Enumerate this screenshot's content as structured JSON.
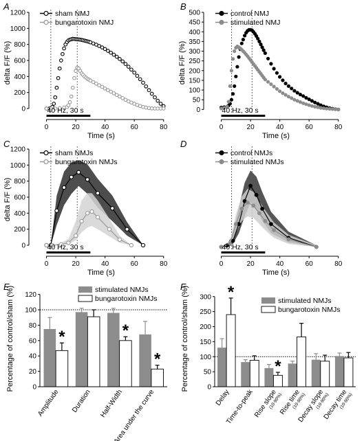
{
  "figure": {
    "panels": [
      "A",
      "B",
      "C",
      "D",
      "E",
      "F"
    ]
  },
  "chart_data": [
    {
      "panel": "A",
      "type": "scatter",
      "xlabel": "Time (s)",
      "ylabel": "delta F/F (%)",
      "xlim": [
        -12,
        82
      ],
      "ylim": [
        -60,
        1200
      ],
      "xticks": [
        0,
        20,
        40,
        60,
        80
      ],
      "yticks": [
        0,
        200,
        400,
        600,
        800,
        1000,
        1200
      ],
      "stimulus": {
        "label": "40 Hz, 30 s",
        "x0": 0,
        "x1": 30
      },
      "vlines": [
        3,
        21
      ],
      "series": [
        {
          "name": "sham NMJ",
          "marker": "open",
          "color": "#000000",
          "x": [
            0,
            2,
            3,
            4,
            5,
            6,
            7,
            8,
            9,
            10,
            11,
            12,
            13,
            14,
            15,
            16,
            17,
            18,
            19,
            20,
            21,
            22,
            23,
            24,
            25,
            26,
            27,
            28,
            29,
            30,
            32,
            34,
            36,
            38,
            40,
            42,
            44,
            46,
            48,
            50,
            52,
            54,
            56,
            58,
            60,
            62,
            64,
            66,
            68,
            70,
            72,
            74,
            76,
            78,
            80
          ],
          "y": [
            0,
            0,
            5,
            20,
            60,
            140,
            260,
            380,
            500,
            600,
            680,
            750,
            800,
            830,
            850,
            860,
            865,
            870,
            868,
            866,
            864,
            862,
            860,
            856,
            852,
            848,
            843,
            838,
            832,
            826,
            812,
            797,
            780,
            762,
            742,
            720,
            697,
            672,
            646,
            618,
            588,
            556,
            522,
            486,
            448,
            408,
            366,
            322,
            276,
            230,
            184,
            140,
            98,
            60,
            30
          ]
        },
        {
          "name": "bungarotoxin NMJ",
          "marker": "open",
          "color": "#9a9a9a",
          "x": [
            0,
            3,
            6,
            9,
            12,
            14,
            15,
            16,
            17,
            18,
            19,
            20,
            21,
            22,
            23,
            24,
            25,
            26,
            27,
            28,
            29,
            30,
            32,
            34,
            36,
            38,
            40,
            42,
            44,
            46,
            48,
            50,
            52,
            54,
            56,
            58,
            60,
            62,
            64,
            66,
            68,
            70,
            72,
            74,
            76,
            78,
            80
          ],
          "y": [
            0,
            0,
            0,
            5,
            10,
            20,
            40,
            80,
            150,
            260,
            380,
            470,
            510,
            500,
            470,
            440,
            420,
            400,
            385,
            370,
            360,
            350,
            330,
            310,
            290,
            270,
            250,
            230,
            210,
            190,
            170,
            150,
            130,
            110,
            90,
            75,
            60,
            45,
            32,
            20,
            12,
            6,
            2,
            0,
            0,
            0,
            0
          ]
        }
      ]
    },
    {
      "panel": "B",
      "type": "scatter",
      "xlabel": "Time (s)",
      "ylabel": "delta F/F (%)",
      "xlim": [
        -12,
        82
      ],
      "ylim": [
        -20,
        500
      ],
      "xticks": [
        0,
        20,
        40,
        60,
        80
      ],
      "yticks": [
        0,
        50,
        100,
        150,
        200,
        250,
        300,
        350,
        400,
        450,
        500
      ],
      "stimulus": {
        "label": "40 Hz, 30 s",
        "x0": 0,
        "x1": 30
      },
      "vlines": [
        7,
        21
      ],
      "series": [
        {
          "name": "control NMJ",
          "marker": "filled",
          "color": "#000000",
          "x": [
            0,
            2,
            4,
            5,
            6,
            7,
            8,
            9,
            10,
            11,
            12,
            13,
            14,
            15,
            16,
            17,
            18,
            19,
            20,
            21,
            22,
            23,
            24,
            25,
            26,
            27,
            28,
            29,
            30,
            32,
            34,
            36,
            38,
            40,
            42,
            44,
            46,
            48,
            50,
            52,
            54,
            56,
            58,
            60,
            62,
            64,
            66,
            68,
            70,
            72,
            74,
            76,
            78,
            80
          ],
          "y": [
            10,
            12,
            15,
            20,
            30,
            50,
            80,
            120,
            170,
            220,
            270,
            310,
            340,
            360,
            380,
            395,
            405,
            410,
            410,
            408,
            400,
            390,
            378,
            365,
            350,
            335,
            320,
            305,
            290,
            262,
            235,
            210,
            188,
            168,
            150,
            134,
            120,
            108,
            96,
            86,
            77,
            69,
            60,
            52,
            44,
            36,
            29,
            22,
            16,
            11,
            7,
            4,
            2,
            0
          ]
        },
        {
          "name": "stimulated NMJ",
          "marker": "filled",
          "color": "#8c8c8c",
          "x": [
            0,
            2,
            4,
            5,
            6,
            7,
            8,
            9,
            10,
            11,
            12,
            13,
            14,
            15,
            16,
            17,
            18,
            19,
            20,
            21,
            22,
            23,
            24,
            25,
            26,
            27,
            28,
            29,
            30,
            32,
            34,
            36,
            38,
            40,
            42,
            44,
            46,
            48,
            50,
            52,
            54,
            56,
            58,
            60,
            62,
            64,
            66,
            68,
            70,
            72,
            74,
            76,
            78,
            80
          ],
          "y": [
            5,
            8,
            15,
            40,
            120,
            200,
            260,
            300,
            318,
            325,
            320,
            315,
            308,
            300,
            292,
            283,
            274,
            264,
            254,
            244,
            234,
            224,
            214,
            204,
            194,
            184,
            174,
            164,
            154,
            142,
            130,
            118,
            106,
            94,
            84,
            75,
            66,
            58,
            50,
            44,
            38,
            32,
            27,
            22,
            18,
            14,
            11,
            8,
            6,
            4,
            3,
            2,
            1,
            0
          ]
        }
      ]
    },
    {
      "panel": "C",
      "type": "line",
      "xlabel": "Time (s)",
      "ylabel": "delta F/F (%)",
      "xlim": [
        -12,
        82
      ],
      "ylim": [
        -60,
        1200
      ],
      "xticks": [
        0,
        20,
        40,
        60,
        80
      ],
      "yticks": [
        0,
        200,
        400,
        600,
        800,
        1000,
        1200
      ],
      "stimulus": {
        "label": "40 Hz, 30 s",
        "x0": 0,
        "x1": 30
      },
      "vlines": [
        3,
        21
      ],
      "series": [
        {
          "name": "sham NMJs",
          "marker": "open",
          "color": "#000000",
          "band": "#4d4d4d",
          "x": [
            0,
            3,
            7,
            12,
            17,
            22,
            28,
            35,
            45,
            55,
            66
          ],
          "y": [
            0,
            0,
            430,
            720,
            850,
            910,
            820,
            650,
            460,
            200,
            0
          ],
          "lower": [
            0,
            0,
            250,
            500,
            640,
            740,
            640,
            470,
            300,
            120,
            0
          ],
          "upper": [
            0,
            0,
            620,
            920,
            1030,
            1060,
            1010,
            830,
            620,
            290,
            0
          ]
        },
        {
          "name": "bungarotoxin NMJs",
          "marker": "open",
          "color": "#9a9a9a",
          "band": "#d4d4d4",
          "x": [
            0,
            4,
            10,
            15,
            20,
            24,
            28,
            31,
            35,
            43,
            50,
            58
          ],
          "y": [
            0,
            0,
            10,
            30,
            120,
            300,
            400,
            420,
            350,
            200,
            70,
            0
          ],
          "lower": [
            0,
            0,
            0,
            10,
            60,
            160,
            220,
            240,
            200,
            110,
            30,
            0
          ],
          "upper": [
            0,
            0,
            30,
            80,
            300,
            560,
            650,
            650,
            560,
            330,
            120,
            0
          ]
        }
      ]
    },
    {
      "panel": "D",
      "type": "line",
      "xlabel": "Time (s)",
      "ylabel": "",
      "xlim": [
        -12,
        82
      ],
      "ylim": [
        -20,
        640
      ],
      "xticks": [
        0,
        20,
        40,
        60,
        80
      ],
      "yticks": [],
      "stimulus": {
        "label": "40 Hz, 30 s",
        "x0": 0,
        "x1": 30
      },
      "vlines": [
        7,
        21
      ],
      "series": [
        {
          "name": "control NMJs",
          "marker": "filled",
          "color": "#000000",
          "band": "#555555",
          "x": [
            0,
            4,
            8,
            12,
            16,
            20,
            24,
            28,
            34,
            46,
            65
          ],
          "y": [
            0,
            10,
            40,
            150,
            300,
            400,
            340,
            250,
            150,
            60,
            0
          ],
          "lower": [
            0,
            0,
            20,
            90,
            200,
            290,
            250,
            170,
            90,
            30,
            0
          ],
          "upper": [
            0,
            20,
            80,
            260,
            420,
            500,
            460,
            360,
            230,
            100,
            10
          ]
        },
        {
          "name": "stimulated NMJs",
          "marker": "filled",
          "color": "#8c8c8c",
          "band": "#cfcfcf",
          "x": [
            0,
            6,
            10,
            14,
            18,
            22,
            26,
            30,
            36,
            46,
            65
          ],
          "y": [
            0,
            20,
            150,
            250,
            290,
            270,
            220,
            170,
            110,
            50,
            0
          ],
          "lower": [
            0,
            5,
            90,
            170,
            200,
            190,
            150,
            110,
            60,
            20,
            0
          ],
          "upper": [
            0,
            40,
            210,
            330,
            380,
            360,
            300,
            240,
            160,
            80,
            10
          ]
        }
      ]
    },
    {
      "panel": "E",
      "type": "bar",
      "ylabel": "Percentage of control/sham (%)",
      "ylim": [
        0,
        125
      ],
      "yticks": [
        0,
        20,
        40,
        60,
        80,
        100,
        120
      ],
      "reference_line": 100,
      "categories": [
        "Amplitude",
        "Duration",
        "Half-Width",
        "Area under the curve"
      ],
      "series": [
        {
          "name": "stimulated NMJs",
          "color": "#8c8c8c",
          "values": [
            75,
            97,
            96,
            68
          ],
          "errors": [
            15,
            5,
            6,
            17
          ]
        },
        {
          "name": "bungarotoxin NMJs",
          "color": "#ffffff",
          "values": [
            47,
            91,
            60,
            23
          ],
          "errors": [
            10,
            9,
            5,
            5
          ]
        }
      ],
      "significance": [
        {
          "category": 0,
          "series": 1,
          "label": "*"
        },
        {
          "category": 2,
          "series": 1,
          "label": "*"
        },
        {
          "category": 3,
          "series": 1,
          "label": "*"
        }
      ]
    },
    {
      "panel": "F",
      "type": "bar",
      "ylabel": "Percentage of control/sham (%)",
      "ylim": [
        0,
        320
      ],
      "yticks": [
        0,
        50,
        100,
        150,
        200,
        250,
        300
      ],
      "reference_line": 100,
      "categories": [
        {
          "label": "Delay",
          "sub": ""
        },
        {
          "label": "Time-to-peak",
          "sub": ""
        },
        {
          "label": "Rise slope",
          "sub": "(10-90%)"
        },
        {
          "label": "Rise time",
          "sub": "(10-90%)"
        },
        {
          "label": "Decay slope",
          "sub": "(10-90%)"
        },
        {
          "label": "Decay time",
          "sub": "(10-90%)"
        }
      ],
      "series": [
        {
          "name": "stimulated NMJs",
          "color": "#8c8c8c",
          "values": [
            130,
            82,
            62,
            77,
            90,
            102
          ],
          "errors": [
            30,
            8,
            12,
            8,
            20,
            10
          ]
        },
        {
          "name": "bungarotoxin NMJs",
          "color": "#ffffff",
          "values": [
            240,
            88,
            38,
            166,
            85,
            96
          ],
          "errors": [
            55,
            15,
            10,
            45,
            20,
            18
          ]
        }
      ],
      "significance": [
        {
          "category": 0,
          "series": 1,
          "label": "*"
        },
        {
          "category": 2,
          "series": 1,
          "label": "*"
        }
      ]
    }
  ]
}
